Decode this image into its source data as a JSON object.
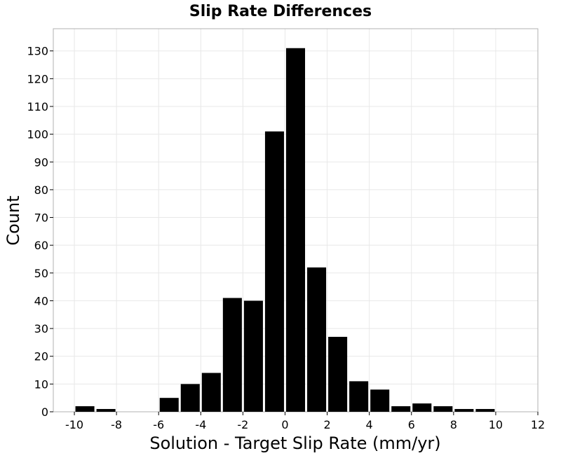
{
  "chart_data": {
    "type": "bar",
    "title": "Slip Rate Differences",
    "xlabel": "Solution - Target Slip Rate (mm/yr)",
    "ylabel": "Count",
    "bin_width": 1,
    "bins": [
      {
        "x": -9.5,
        "count": 2
      },
      {
        "x": -8.5,
        "count": 1
      },
      {
        "x": -7.5,
        "count": 0
      },
      {
        "x": -6.5,
        "count": 0
      },
      {
        "x": -5.5,
        "count": 5
      },
      {
        "x": -4.5,
        "count": 10
      },
      {
        "x": -3.5,
        "count": 14
      },
      {
        "x": -2.5,
        "count": 41
      },
      {
        "x": -1.5,
        "count": 40
      },
      {
        "x": -0.5,
        "count": 101
      },
      {
        "x": 0.5,
        "count": 131
      },
      {
        "x": 1.5,
        "count": 52
      },
      {
        "x": 2.5,
        "count": 27
      },
      {
        "x": 3.5,
        "count": 11
      },
      {
        "x": 4.5,
        "count": 8
      },
      {
        "x": 5.5,
        "count": 2
      },
      {
        "x": 6.5,
        "count": 3
      },
      {
        "x": 7.5,
        "count": 2
      },
      {
        "x": 8.5,
        "count": 1
      },
      {
        "x": 9.5,
        "count": 1
      }
    ],
    "xlim": [
      -11,
      12
    ],
    "ylim": [
      0,
      138
    ],
    "xticks": [
      -10,
      -8,
      -6,
      -4,
      -2,
      0,
      2,
      4,
      6,
      8,
      10,
      12
    ],
    "yticks": [
      0,
      10,
      20,
      30,
      40,
      50,
      60,
      70,
      80,
      90,
      100,
      110,
      120,
      130
    ],
    "xtick_labels": [
      "-10",
      "-8",
      "-6",
      "-4",
      "-2",
      "0",
      "2",
      "4",
      "6",
      "8",
      "10",
      "12"
    ],
    "ytick_labels": [
      "0",
      "10",
      "20",
      "30",
      "40",
      "50",
      "60",
      "70",
      "80",
      "90",
      "100",
      "110",
      "120",
      "130"
    ],
    "grid": true,
    "bar_color": "#000000",
    "grid_color": "#e8e8e8",
    "frame_color": "#b0b0b0"
  }
}
